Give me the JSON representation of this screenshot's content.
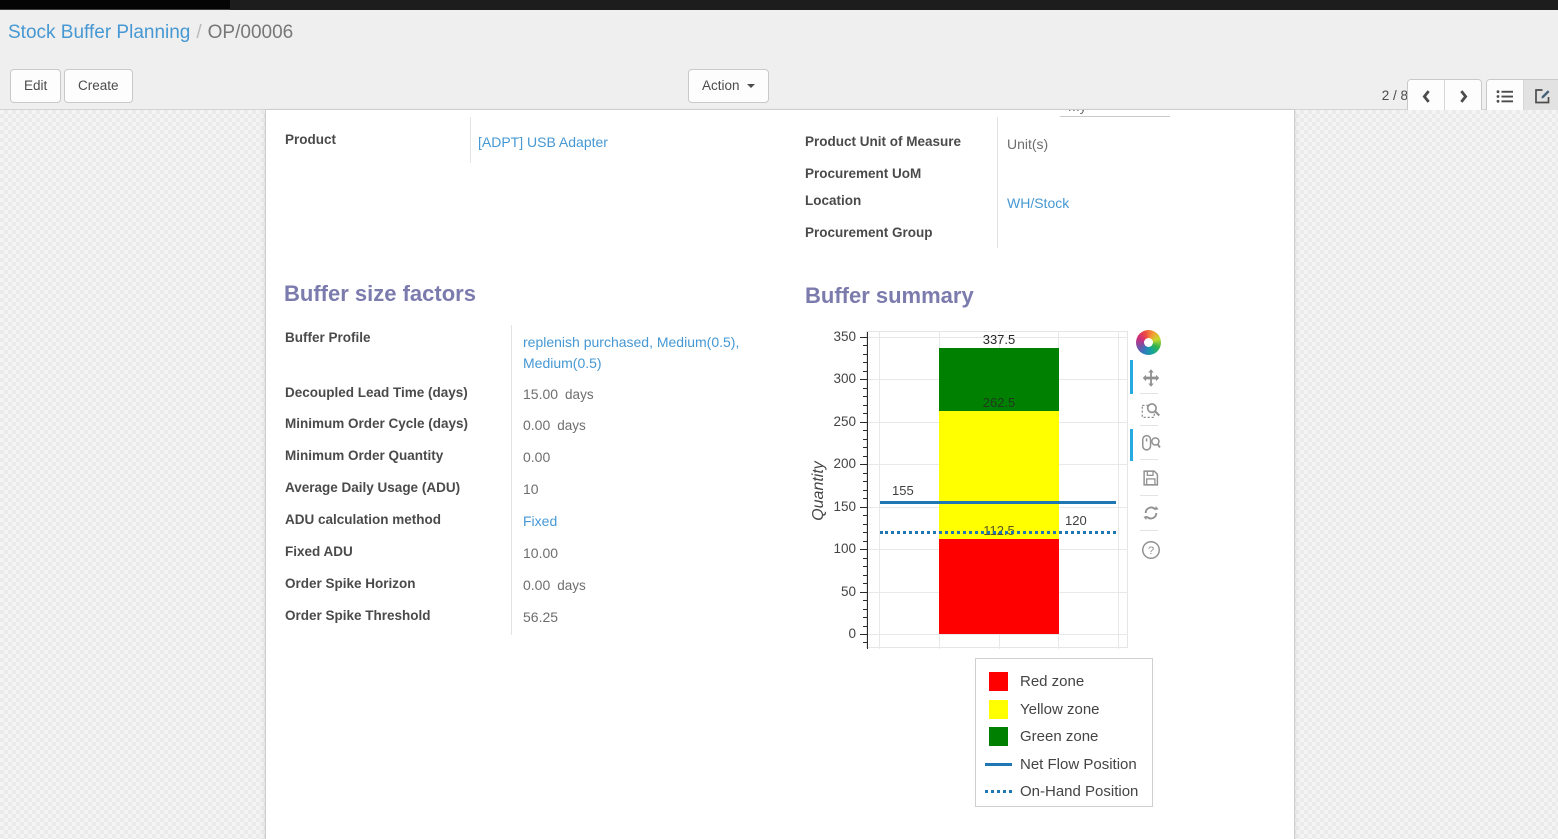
{
  "breadcrumb": {
    "parent": "Stock Buffer Planning",
    "separator": "/",
    "current": "OP/00006"
  },
  "toolbar": {
    "edit_label": "Edit",
    "create_label": "Create",
    "action_label": "Action",
    "pager": "2 / 8"
  },
  "artifacts": {
    "clipped_value": "My Company"
  },
  "form": {
    "product": {
      "label": "Product",
      "value": "[ADPT] USB Adapter"
    },
    "right_fields": [
      {
        "label": "Product Unit of Measure",
        "value": "Unit(s)",
        "link": false
      },
      {
        "label": "Procurement UoM",
        "value": "",
        "link": false
      },
      {
        "label": "Location",
        "value": "WH/Stock",
        "link": true
      },
      {
        "label": "Procurement Group",
        "value": "",
        "link": false
      }
    ],
    "section_left_title": "Buffer size factors",
    "section_right_title": "Buffer summary",
    "factors": [
      {
        "label": "Buffer Profile",
        "value": "replenish purchased, Medium(0.5), Medium(0.5)",
        "link": true
      },
      {
        "label": "Decoupled Lead Time (days)",
        "value": "15.00",
        "suffix": "days"
      },
      {
        "label": "Minimum Order Cycle (days)",
        "value": "0.00",
        "suffix": "days"
      },
      {
        "label": "Minimum Order Quantity",
        "value": "0.00"
      },
      {
        "label": "Average Daily Usage (ADU)",
        "value": "10"
      },
      {
        "label": "ADU calculation method",
        "value": "Fixed",
        "link": true
      },
      {
        "label": "Fixed ADU",
        "value": "10.00"
      },
      {
        "label": "Order Spike Horizon",
        "value": "0.00",
        "suffix": "days"
      },
      {
        "label": "Order Spike Threshold",
        "value": "56.25"
      }
    ]
  },
  "chart_data": {
    "type": "bar",
    "stacked": true,
    "title": "Buffer summary",
    "xlabel": "",
    "ylabel": "Quantity",
    "ylim": [
      0,
      350
    ],
    "y_ticks": [
      0,
      50,
      100,
      150,
      200,
      250,
      300,
      350
    ],
    "y_minor_step": 10,
    "grid": true,
    "zones": [
      {
        "name": "Red zone",
        "color": "#ff0000",
        "from": 0,
        "to": 112.5,
        "boundary_label": "112.5"
      },
      {
        "name": "Yellow zone",
        "color": "#ffff00",
        "from": 112.5,
        "to": 262.5,
        "boundary_label": "262.5"
      },
      {
        "name": "Green zone",
        "color": "#008000",
        "from": 262.5,
        "to": 337.5,
        "boundary_label": "337.5"
      }
    ],
    "lines": [
      {
        "name": "Net Flow Position",
        "value": 155,
        "style": "solid",
        "color": "#1f77b4",
        "label": "155",
        "label_side": "left"
      },
      {
        "name": "On-Hand Position",
        "value": 120,
        "style": "dotted",
        "color": "#1f77b4",
        "label": "120",
        "label_side": "right"
      }
    ],
    "legend": [
      {
        "label": "Red zone",
        "swatch": "square",
        "color": "#ff0000"
      },
      {
        "label": "Yellow zone",
        "swatch": "square",
        "color": "#ffff00"
      },
      {
        "label": "Green zone",
        "swatch": "square",
        "color": "#008000"
      },
      {
        "label": "Net Flow Position",
        "swatch": "line",
        "color": "#1f77b4"
      },
      {
        "label": "On-Hand Position",
        "swatch": "dotted-line",
        "color": "#1f77b4"
      }
    ],
    "legend_position": "below-right",
    "toolbar": [
      "pan",
      "box-zoom",
      "wheel-zoom",
      "save",
      "reset",
      "help"
    ],
    "active_tools": [
      "pan",
      "wheel-zoom"
    ]
  }
}
